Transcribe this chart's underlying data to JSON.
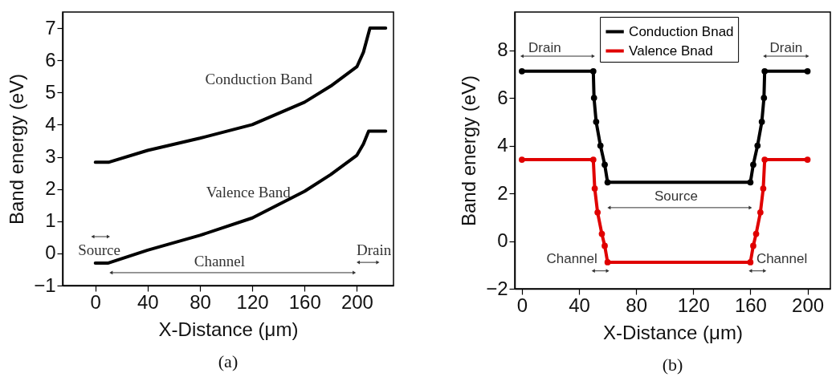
{
  "chart_data": [
    {
      "type": "line",
      "title": "(a)",
      "xlabel": "X-Distance (μm)",
      "ylabel": "Band energy (eV)",
      "xlim": [
        -25,
        228
      ],
      "xticks": [
        0,
        40,
        80,
        120,
        160,
        200
      ],
      "ylim": [
        -1,
        7.5
      ],
      "yticks": [
        -1,
        0,
        1,
        2,
        3,
        4,
        5,
        6,
        7
      ],
      "grid": false,
      "marker": "none",
      "line_style": "solid",
      "series": [
        {
          "color": "#000000",
          "x": [
            0,
            10,
            40,
            80,
            120,
            160,
            180,
            200,
            205,
            208,
            210,
            222
          ],
          "values": [
            2.83,
            2.83,
            3.2,
            3.58,
            4.0,
            4.7,
            5.2,
            5.8,
            6.25,
            6.7,
            7.0,
            7.0
          ]
        },
        {
          "color": "#000000",
          "x": [
            0,
            10,
            40,
            80,
            120,
            160,
            180,
            200,
            205,
            208,
            209,
            222
          ],
          "values": [
            -0.3,
            -0.3,
            0.1,
            0.56,
            1.1,
            1.93,
            2.45,
            3.05,
            3.4,
            3.7,
            3.8,
            3.8
          ]
        }
      ],
      "annotations": [
        "Conduction Band",
        "Valence Band",
        "Source",
        "Channel",
        "Drain"
      ]
    },
    {
      "type": "line",
      "title": "(b)",
      "xlabel": "X-Distance (μm)",
      "ylabel": "Band energy (eV)",
      "xlim": [
        -5,
        216
      ],
      "xticks": [
        0,
        40,
        80,
        120,
        160,
        200
      ],
      "ylim": [
        -2,
        9.6
      ],
      "yticks": [
        -2,
        0,
        2,
        4,
        6,
        8
      ],
      "grid": false,
      "legend": "top",
      "marker": "circle",
      "line_style": "solid",
      "series": [
        {
          "name": "Conduction Bnad",
          "color": "#000000",
          "x": [
            0,
            50,
            50.5,
            52,
            55,
            58,
            60,
            160,
            162,
            165,
            168,
            169.5,
            170,
            200
          ],
          "values": [
            7.12,
            7.12,
            6.0,
            5.0,
            4.0,
            3.2,
            2.46,
            2.46,
            3.2,
            4.0,
            5.0,
            6.0,
            7.12,
            7.12
          ]
        },
        {
          "name": "Valence Bnad",
          "color": "#e00000",
          "x": [
            0,
            50,
            51,
            53,
            56,
            58,
            60,
            160,
            162,
            164,
            167,
            169,
            170,
            200
          ],
          "values": [
            3.41,
            3.41,
            2.2,
            1.2,
            0.3,
            -0.2,
            -0.89,
            -0.89,
            -0.2,
            0.3,
            1.2,
            2.2,
            3.41,
            3.41
          ]
        }
      ],
      "annotations": [
        "Drain",
        "Drain",
        "Source",
        "Channel",
        "Channel"
      ]
    }
  ]
}
